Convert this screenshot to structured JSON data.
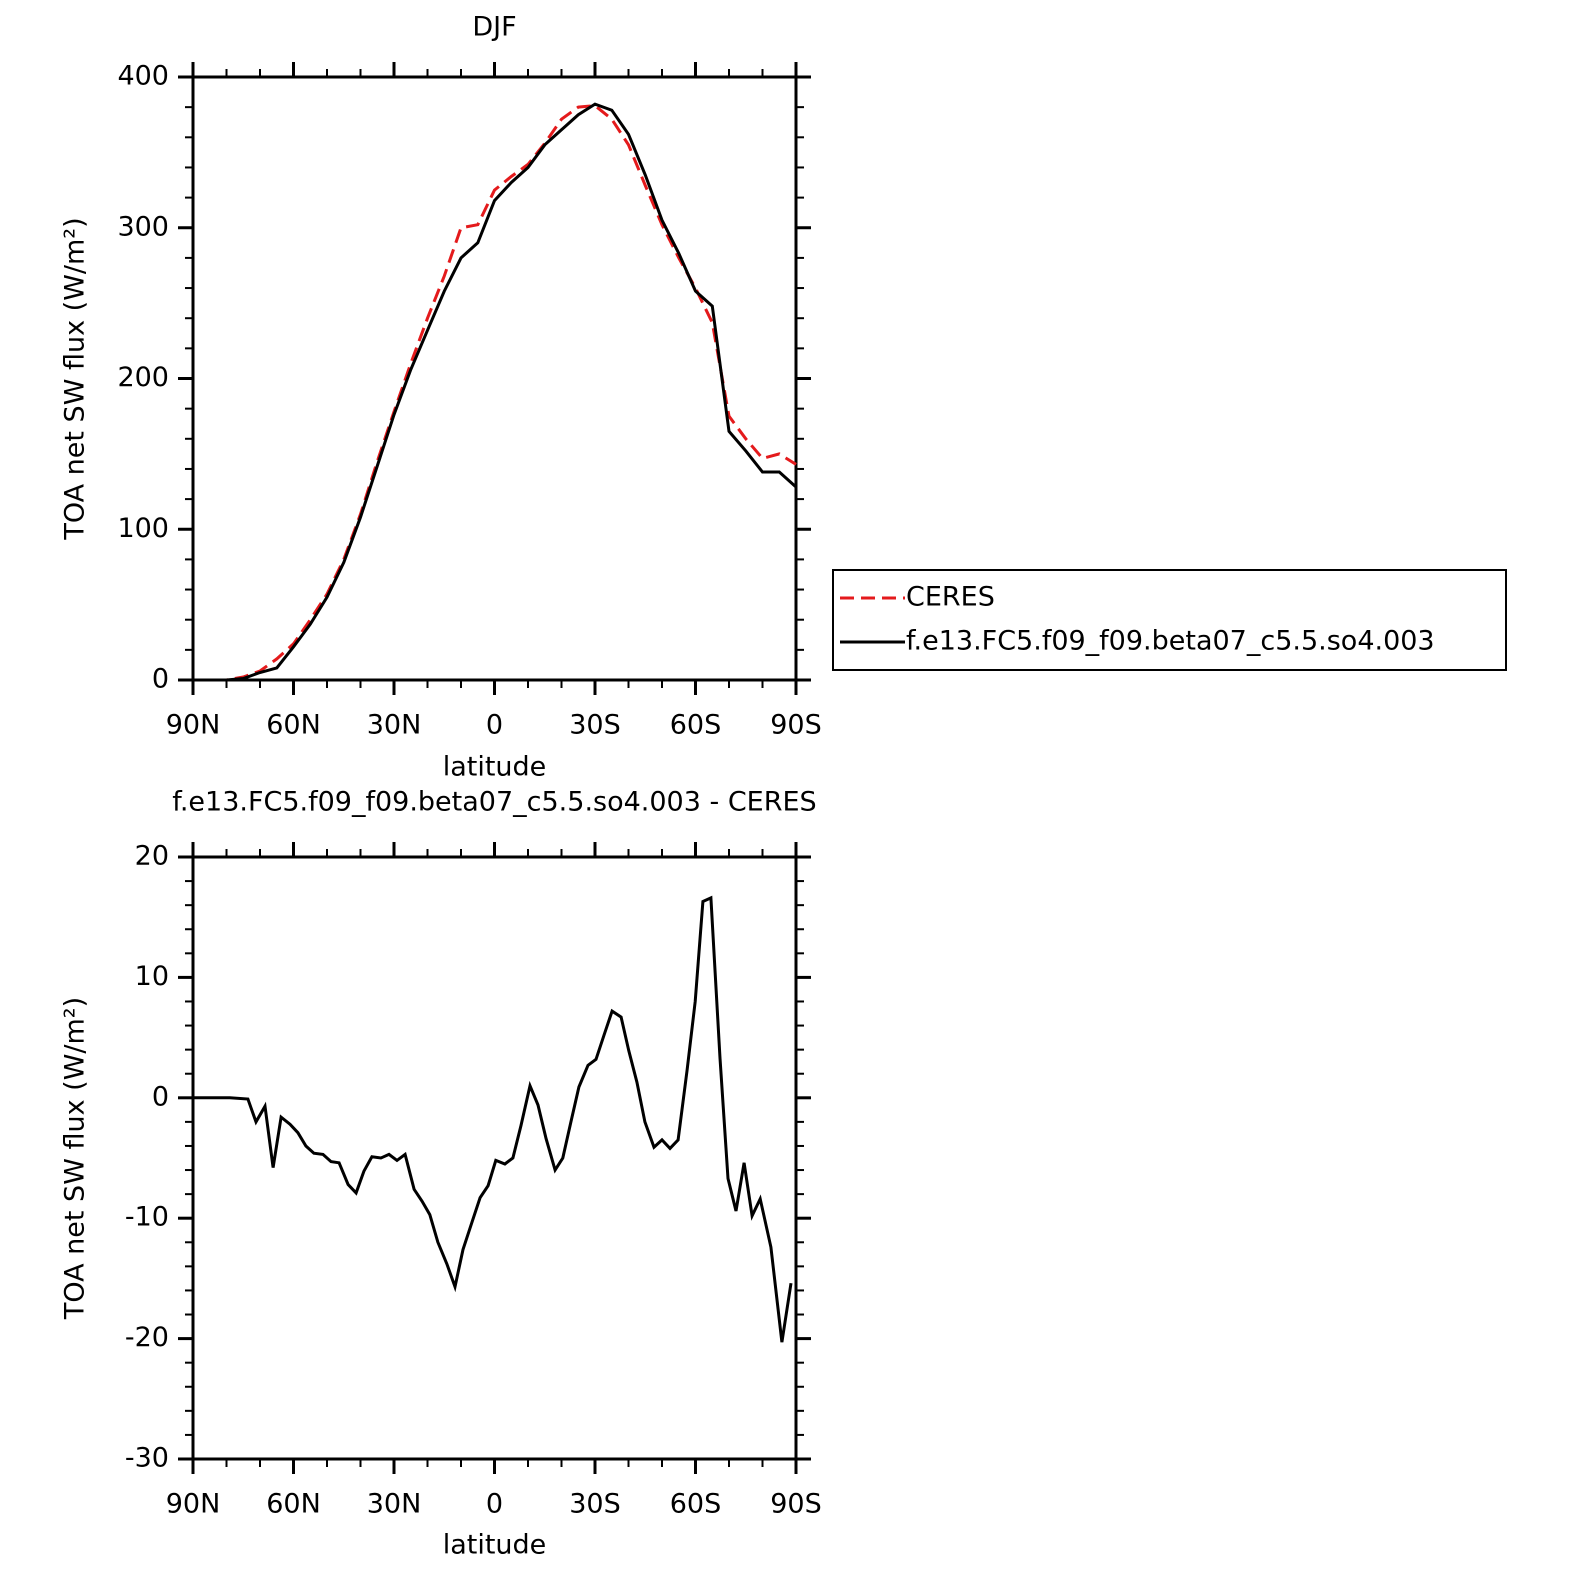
{
  "chart_data": [
    {
      "type": "line",
      "title": "DJF",
      "x_label": "latitude",
      "y_label": "TOA net SW flux (W/m²)",
      "x": [
        90,
        85,
        80,
        75,
        70,
        65,
        60,
        55,
        50,
        45,
        40,
        35,
        30,
        25,
        20,
        15,
        10,
        5,
        0,
        -5,
        -10,
        -15,
        -20,
        -25,
        -30,
        -35,
        -40,
        -45,
        -50,
        -55,
        -60,
        -65,
        -70,
        -75,
        -80,
        -85,
        -90
      ],
      "series": [
        {
          "name": "CERES",
          "color": "#e41a1c",
          "style": "dashed",
          "values": [
            0,
            0,
            0,
            2,
            6,
            14,
            24,
            40,
            57,
            80,
            110,
            145,
            178,
            210,
            240,
            268,
            300,
            302,
            325,
            334,
            342,
            356,
            372,
            380,
            381,
            372,
            355,
            328,
            302,
            280,
            260,
            237,
            175,
            160,
            147,
            150,
            143
          ]
        },
        {
          "name": "f.e13.FC5.f09_f09.beta07_c5.5.so4.003",
          "color": "#000000",
          "style": "solid",
          "values": [
            0,
            0,
            0,
            1,
            5,
            8,
            22,
            37,
            55,
            78,
            108,
            142,
            176,
            206,
            232,
            258,
            280,
            290,
            318,
            330,
            340,
            355,
            365,
            375,
            382,
            378,
            362,
            335,
            305,
            283,
            258,
            248,
            165,
            152,
            138,
            138,
            128
          ]
        }
      ],
      "xlim": [
        90,
        -90
      ],
      "xticks": [
        {
          "value": 90,
          "label": "90N"
        },
        {
          "value": 60,
          "label": "60N"
        },
        {
          "value": 30,
          "label": "30N"
        },
        0,
        {
          "value": -30,
          "label": "30S"
        },
        {
          "value": -60,
          "label": "60S"
        },
        {
          "value": -90,
          "label": "90S"
        }
      ],
      "ylim": [
        0,
        400
      ],
      "yticks": [
        0,
        100,
        200,
        300,
        400
      ],
      "legend": "right"
    },
    {
      "type": "line",
      "title": "f.e13.FC5.f09_f09.beta07_c5.5.so4.003 - CERES",
      "x_label": "latitude",
      "y_label": "TOA net SW flux (W/m²)",
      "x": [
        90,
        84.3,
        79,
        73.6,
        71.2,
        68.5,
        66.1,
        63.7,
        61,
        58.7,
        56.3,
        53.9,
        51.2,
        48.8,
        46.4,
        43.7,
        41.3,
        39,
        36.6,
        33.9,
        31.5,
        29.1,
        26.7,
        24,
        21.6,
        19.3,
        16.9,
        14.2,
        11.8,
        9.4,
        6.7,
        4.3,
        1.9,
        -0.4,
        -3.1,
        -5.5,
        -7.9,
        -10.6,
        -13,
        -15.4,
        -18.1,
        -20.4,
        -22.8,
        -25.2,
        -27.9,
        -30.3,
        -32.7,
        -35.1,
        -37.8,
        -40.1,
        -42.5,
        -44.9,
        -47.6,
        -50,
        -52.4,
        -54.8,
        -57.5,
        -59.9,
        -62.2,
        -64.6,
        -67.3,
        -69.7,
        -72.1,
        -74.5,
        -76.9,
        -79.3,
        -82.5,
        -85.8,
        -88.5
      ],
      "series": [
        {
          "color": "#000000",
          "style": "solid",
          "values": [
            0,
            0,
            0,
            -0.1,
            -2,
            -0.7,
            -5.8,
            -1.6,
            -2.2,
            -2.9,
            -4,
            -4.6,
            -4.7,
            -5.3,
            -5.4,
            -7.2,
            -7.9,
            -6.1,
            -4.9,
            -5,
            -4.7,
            -5.2,
            -4.7,
            -7.6,
            -8.6,
            -9.7,
            -12,
            -13.8,
            -15.7,
            -12.6,
            -10.3,
            -8.3,
            -7.3,
            -5.2,
            -5.5,
            -5,
            -2.3,
            1,
            -0.6,
            -3.4,
            -6,
            -5,
            -2,
            0.9,
            2.7,
            3.2,
            5.2,
            7.2,
            6.7,
            3.9,
            1.3,
            -2,
            -4.1,
            -3.5,
            -4.2,
            -3.5,
            2.3,
            8,
            16.3,
            16.6,
            3.3,
            -6.7,
            -9.4,
            -5.4,
            -9.8,
            -8.4,
            -12.4,
            -20.3,
            -15.4
          ]
        }
      ],
      "xlim": [
        90,
        -90
      ],
      "xticks": [
        {
          "value": 90,
          "label": "90N"
        },
        {
          "value": 60,
          "label": "60N"
        },
        {
          "value": 30,
          "label": "30N"
        },
        0,
        {
          "value": -30,
          "label": "30S"
        },
        {
          "value": -60,
          "label": "60S"
        },
        {
          "value": -90,
          "label": "90S"
        }
      ],
      "ylim": [
        -30,
        20
      ],
      "yticks": [
        -30,
        -20,
        -10,
        0,
        10,
        20
      ]
    }
  ]
}
